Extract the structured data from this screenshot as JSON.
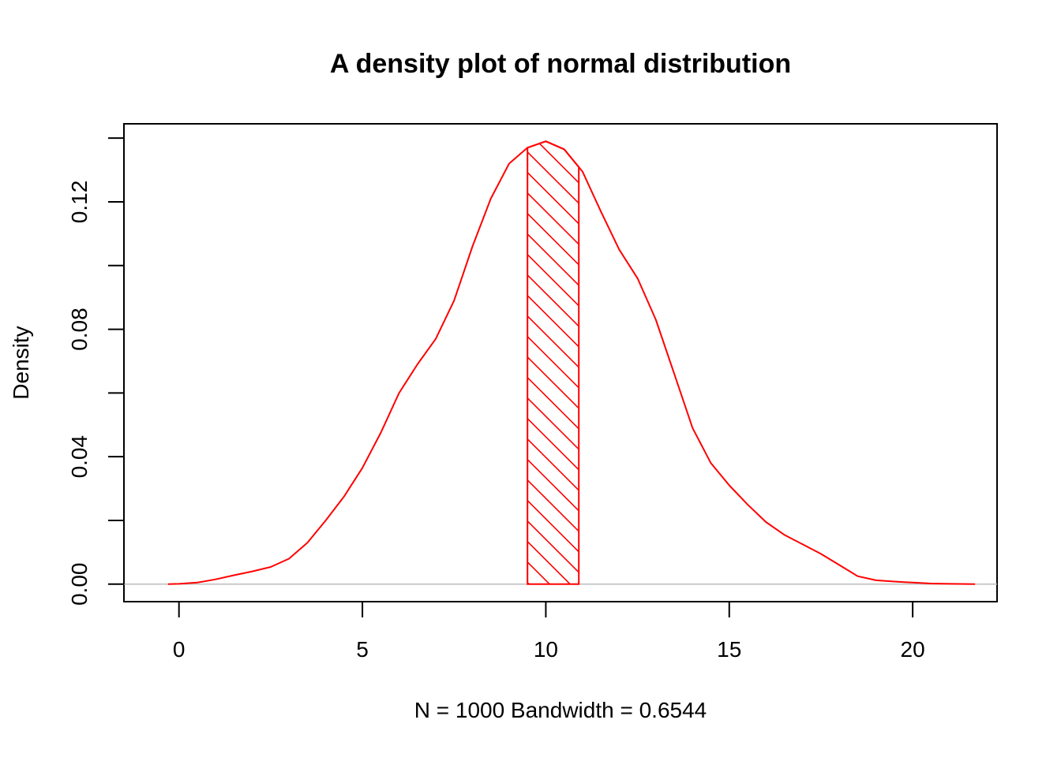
{
  "chart_data": {
    "type": "area",
    "title": "A density plot of normal distribution",
    "xlabel": "N = 1000   Bandwidth = 0.6544",
    "ylabel": "Density",
    "xlim": [
      -1.5,
      22.3
    ],
    "ylim": [
      -0.0055,
      0.1445
    ],
    "x_ticks": [
      0,
      5,
      10,
      15,
      20
    ],
    "x_tick_labels": [
      "0",
      "5",
      "10",
      "15",
      "20"
    ],
    "y_ticks": [
      0.0,
      0.02,
      0.04,
      0.06,
      0.08,
      0.1,
      0.12,
      0.14
    ],
    "y_tick_labels": [
      "0.00",
      "",
      "0.04",
      "",
      "0.08",
      "",
      "0.12",
      ""
    ],
    "grid": false,
    "colors": {
      "curve": "#ff0000",
      "baseline": "#bebebe",
      "axes": "#000000"
    },
    "series": [
      {
        "x": [
          -0.3,
          0,
          0.5,
          1,
          1.5,
          2,
          2.5,
          3,
          3.5,
          4,
          4.5,
          5,
          5.5,
          6,
          6.5,
          7,
          7.5,
          8,
          8.5,
          9,
          9.5,
          10,
          10.5,
          11,
          11.5,
          12,
          12.5,
          13,
          13.5,
          14,
          14.5,
          15,
          15.5,
          16,
          16.5,
          17,
          17.5,
          18,
          18.5,
          19,
          19.5,
          20,
          20.5,
          21,
          21.7
        ],
        "y": [
          0.0,
          0.0001,
          0.0005,
          0.0015,
          0.0028,
          0.004,
          0.0054,
          0.008,
          0.013,
          0.02,
          0.0275,
          0.0365,
          0.0475,
          0.06,
          0.069,
          0.077,
          0.089,
          0.106,
          0.121,
          0.132,
          0.137,
          0.139,
          0.1365,
          0.1295,
          0.117,
          0.105,
          0.096,
          0.083,
          0.066,
          0.049,
          0.038,
          0.031,
          0.025,
          0.0195,
          0.0155,
          0.0125,
          0.0095,
          0.006,
          0.0025,
          0.0012,
          0.0008,
          0.0005,
          0.0002,
          0.0001,
          0.0
        ]
      }
    ],
    "shaded_region": {
      "x_from": 9.5,
      "x_to": 10.9,
      "fill": "hatched"
    }
  }
}
